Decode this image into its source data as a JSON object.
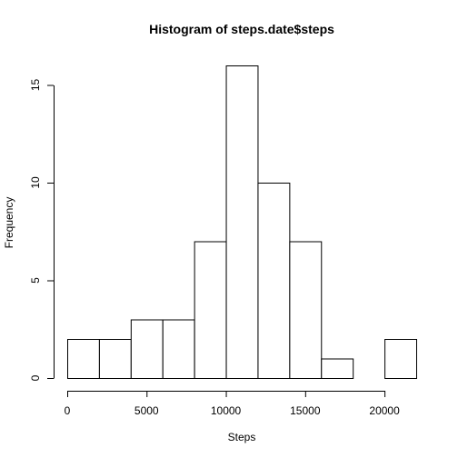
{
  "chart_data": {
    "type": "bar",
    "title": "Histogram of steps.date$steps",
    "xlabel": "Steps",
    "ylabel": "Frequency",
    "bins": [
      {
        "from": 0,
        "to": 2000,
        "count": 2
      },
      {
        "from": 2000,
        "to": 4000,
        "count": 2
      },
      {
        "from": 4000,
        "to": 6000,
        "count": 3
      },
      {
        "from": 6000,
        "to": 8000,
        "count": 3
      },
      {
        "from": 8000,
        "to": 10000,
        "count": 7
      },
      {
        "from": 10000,
        "to": 12000,
        "count": 16
      },
      {
        "from": 12000,
        "to": 14000,
        "count": 10
      },
      {
        "from": 14000,
        "to": 16000,
        "count": 7
      },
      {
        "from": 16000,
        "to": 18000,
        "count": 1
      },
      {
        "from": 18000,
        "to": 20000,
        "count": 0
      },
      {
        "from": 20000,
        "to": 22000,
        "count": 2
      }
    ],
    "xlim": [
      0,
      22000
    ],
    "ylim": [
      0,
      16
    ],
    "xticks": [
      0,
      5000,
      10000,
      15000,
      20000
    ],
    "yticks": [
      0,
      5,
      10,
      15
    ],
    "grid": false,
    "bar_fill": "#ffffff",
    "bar_stroke": "#000000"
  }
}
